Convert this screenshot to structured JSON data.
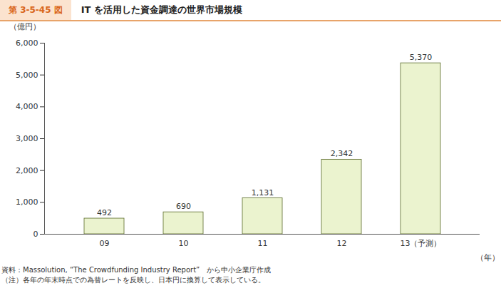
{
  "chart_data": {
    "type": "bar",
    "figure_label": "第 3-5-45 図",
    "title": "IT を活用した資金調達の世界市場規模",
    "y_label": "（億円）",
    "x_label": "（年）",
    "categories": [
      "09",
      "10",
      "11",
      "12",
      "13（予測）"
    ],
    "values": [
      492,
      690,
      1131,
      2342,
      5370
    ],
    "value_labels": [
      "492",
      "690",
      "1,131",
      "2,342",
      "5,370"
    ],
    "data_labels": true,
    "color": "#ebf3cf",
    "ylim": [
      0,
      6000
    ],
    "yticks": [
      0,
      {
        "value": 1000,
        "label": "1,000"
      },
      {
        "value": 2000,
        "label": "2,000"
      },
      {
        "value": 3000,
        "label": "3,000"
      },
      {
        "value": 4000,
        "label": "4,000"
      },
      {
        "value": 5000,
        "label": "5,000"
      },
      {
        "value": 6000,
        "label": "6,000"
      }
    ],
    "grid": false,
    "source": "資料：Massolution, “The Crowdfunding Industry Report”　から中小企業庁作成",
    "note": "（注）各年の年末時点での為替レートを反映し、日本円に換算して表示している。"
  }
}
